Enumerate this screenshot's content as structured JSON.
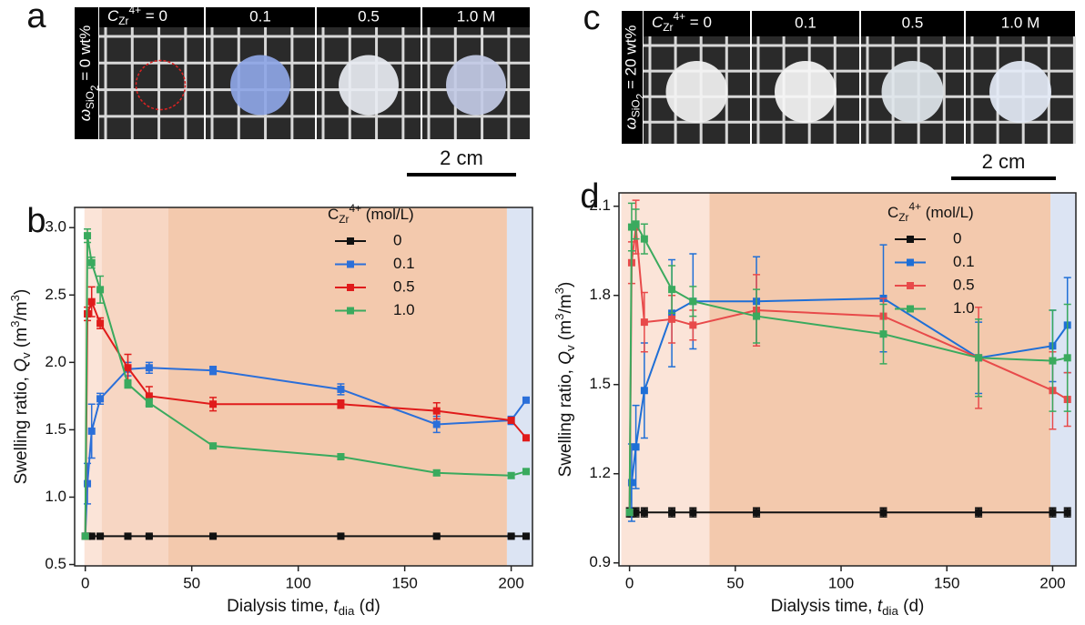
{
  "panels": [
    {
      "label": "a",
      "headers": [
        [
          {
            "text": "C",
            "style": "italic"
          },
          {
            "text": "Zr",
            "style": "sub"
          },
          {
            "text": "4+",
            "style": "sup"
          },
          {
            "text": " = 0",
            "style": "normal"
          }
        ],
        "0.1",
        "0.5",
        "1.0 M"
      ],
      "side_label": [
        {
          "text": "ω",
          "style": "italic"
        },
        {
          "text": "SiO",
          "style": "sub"
        },
        {
          "text": "2",
          "style": "sub2"
        },
        {
          "text": " = 0 wt%",
          "style": "normal"
        }
      ],
      "scale_bar": "2 cm"
    },
    {
      "label": "c",
      "headers": [
        [
          {
            "text": "C",
            "style": "italic"
          },
          {
            "text": "Zr",
            "style": "sub"
          },
          {
            "text": "4+",
            "style": "sup"
          },
          {
            "text": " = 0",
            "style": "normal"
          }
        ],
        "0.1",
        "0.5",
        "1.0 M"
      ],
      "side_label": [
        {
          "text": "ω",
          "style": "italic"
        },
        {
          "text": "SiO",
          "style": "sub"
        },
        {
          "text": "2",
          "style": "sub2"
        },
        {
          "text": " = 20 wt%",
          "style": "normal"
        }
      ],
      "scale_bar": "2 cm"
    }
  ],
  "chart_data": [
    {
      "type": "line",
      "panel_label": "b",
      "x_label": [
        {
          "text": "Dialysis time, ",
          "style": "normal"
        },
        {
          "text": "t",
          "style": "italic"
        },
        {
          "text": "dia",
          "style": "sub"
        },
        {
          "text": " (d)",
          "style": "normal"
        }
      ],
      "y_label": [
        {
          "text": "Swelling ratio, ",
          "style": "normal"
        },
        {
          "text": "Q",
          "style": "italic"
        },
        {
          "text": "v",
          "style": "sub"
        },
        {
          "text": " (m",
          "style": "normal"
        },
        {
          "text": "3",
          "style": "sup"
        },
        {
          "text": "/m",
          "style": "normal"
        },
        {
          "text": "3",
          "style": "sup"
        },
        {
          "text": ")",
          "style": "normal"
        }
      ],
      "legend_title": [
        {
          "text": "C",
          "style": "normal"
        },
        {
          "text": "Zr",
          "style": "sub"
        },
        {
          "text": "4+",
          "style": "sup"
        },
        {
          "text": " (mol/L)",
          "style": "normal"
        }
      ],
      "legend": "upper right",
      "xlim": [
        -5,
        210
      ],
      "xticks": [
        0,
        50,
        100,
        150,
        200
      ],
      "ylim": [
        0.49,
        3.15
      ],
      "yticks": [
        0.5,
        {
          "value": 1.0,
          "label": "1.0"
        },
        1.5,
        {
          "value": 2.0,
          "label": "2.0"
        },
        2.5,
        {
          "value": 3.0,
          "label": "3.0"
        }
      ],
      "shaded_regions": [
        {
          "from": -0.4,
          "to": 7.7,
          "color": "#fbe4d8"
        },
        {
          "from": 7.7,
          "to": 39,
          "color": "#f7d6c3"
        },
        {
          "from": 39,
          "to": 198,
          "color": "#f3c9ad"
        },
        {
          "from": 198,
          "to": 210,
          "color": "#dce4f3"
        }
      ],
      "x": [
        0,
        1,
        3,
        7,
        20,
        30,
        60,
        120,
        165,
        200,
        207
      ],
      "series": [
        {
          "name": "0",
          "color": "#111111",
          "values": [
            0.71,
            0.71,
            0.71,
            0.71,
            0.71,
            0.71,
            0.71,
            0.71,
            0.71,
            0.71,
            0.71
          ],
          "errors": [
            0.01,
            0.01,
            0.01,
            0.01,
            0.01,
            0.01,
            0.01,
            0.01,
            0.01,
            0.01,
            0.01
          ]
        },
        {
          "name": "0.1",
          "color": "#2b6fd9",
          "values": [
            0.71,
            1.1,
            1.49,
            1.73,
            1.95,
            1.96,
            1.94,
            1.8,
            1.54,
            1.57,
            1.72
          ],
          "errors": [
            0.01,
            0.15,
            0.2,
            0.04,
            0.05,
            0.04,
            0.03,
            0.04,
            0.06,
            0.03,
            0.02
          ]
        },
        {
          "name": "0.5",
          "color": "#e01b1b",
          "values": [
            0.71,
            2.36,
            2.45,
            2.29,
            1.96,
            1.75,
            1.69,
            1.69,
            1.64,
            1.57,
            1.44
          ],
          "errors": [
            0.01,
            0.05,
            0.11,
            0.04,
            0.1,
            0.07,
            0.05,
            0.03,
            0.06,
            0.02,
            0.02
          ]
        },
        {
          "name": "1.0",
          "color": "#3aaa5e",
          "values": [
            0.71,
            2.94,
            2.74,
            2.54,
            1.84,
            1.7,
            1.38,
            1.3,
            1.18,
            1.16,
            1.19
          ],
          "errors": [
            0.01,
            0.05,
            0.04,
            0.1,
            0.03,
            0.03,
            0.02,
            0.02,
            0.02,
            0.02,
            0.02
          ]
        }
      ]
    },
    {
      "type": "line",
      "panel_label": "d",
      "x_label": [
        {
          "text": "Dialysis time, ",
          "style": "normal"
        },
        {
          "text": "t",
          "style": "italic"
        },
        {
          "text": "dia",
          "style": "sub"
        },
        {
          "text": " (d)",
          "style": "normal"
        }
      ],
      "y_label": [
        {
          "text": "Swelling ratio, ",
          "style": "normal"
        },
        {
          "text": "Q",
          "style": "italic"
        },
        {
          "text": "v",
          "style": "sub"
        },
        {
          "text": " (m",
          "style": "normal"
        },
        {
          "text": "3",
          "style": "sup"
        },
        {
          "text": "/m",
          "style": "normal"
        },
        {
          "text": "3",
          "style": "sup"
        },
        {
          "text": ")",
          "style": "normal"
        }
      ],
      "legend_title": [
        {
          "text": "C",
          "style": "normal"
        },
        {
          "text": "Zr",
          "style": "sub"
        },
        {
          "text": "4+",
          "style": "sup"
        },
        {
          "text": " (mol/L)",
          "style": "normal"
        }
      ],
      "legend": "upper right",
      "xlim": [
        -5,
        211
      ],
      "xticks": [
        0,
        50,
        100,
        150,
        200
      ],
      "ylim": [
        0.89,
        2.145
      ],
      "yticks": [
        0.9,
        1.2,
        1.5,
        1.8,
        2.1
      ],
      "shaded_regions": [
        {
          "from": -3.9,
          "to": 37.8,
          "color": "#fbe4d8"
        },
        {
          "from": 37.8,
          "to": 199,
          "color": "#f3c9ad"
        },
        {
          "from": 199,
          "to": 211,
          "color": "#dce4f3"
        }
      ],
      "x": [
        0,
        1,
        3,
        7,
        20,
        30,
        60,
        120,
        165,
        200,
        207
      ],
      "series": [
        {
          "name": "0",
          "color": "#111111",
          "values": [
            1.07,
            1.07,
            1.07,
            1.07,
            1.07,
            1.07,
            1.07,
            1.07,
            1.07,
            1.07,
            1.07
          ],
          "errors": [
            0.015,
            0.015,
            0.015,
            0.015,
            0.015,
            0.015,
            0.015,
            0.015,
            0.015,
            0.015,
            0.015
          ]
        },
        {
          "name": "0.1",
          "color": "#1f6fd6",
          "values": [
            1.07,
            1.17,
            1.29,
            1.48,
            1.74,
            1.78,
            1.78,
            1.79,
            1.59,
            1.63,
            1.7
          ],
          "errors": [
            0.01,
            0.13,
            0.14,
            0.16,
            0.18,
            0.16,
            0.15,
            0.18,
            0.12,
            0.12,
            0.16
          ]
        },
        {
          "name": "0.5",
          "color": "#e84a4a",
          "values": [
            1.07,
            1.91,
            2.03,
            1.71,
            1.72,
            1.7,
            1.75,
            1.73,
            1.59,
            1.48,
            1.45
          ],
          "errors": [
            0.01,
            0.07,
            0.09,
            0.1,
            0.08,
            0.05,
            0.12,
            0.06,
            0.17,
            0.13,
            0.09
          ]
        },
        {
          "name": "1.0",
          "color": "#3aaa5e",
          "values": [
            1.07,
            2.03,
            2.04,
            1.99,
            1.82,
            1.78,
            1.73,
            1.67,
            1.59,
            1.58,
            1.59
          ],
          "errors": [
            0.01,
            0.08,
            0.05,
            0.05,
            0.08,
            0.05,
            0.09,
            0.1,
            0.13,
            0.17,
            0.18
          ]
        }
      ]
    }
  ]
}
